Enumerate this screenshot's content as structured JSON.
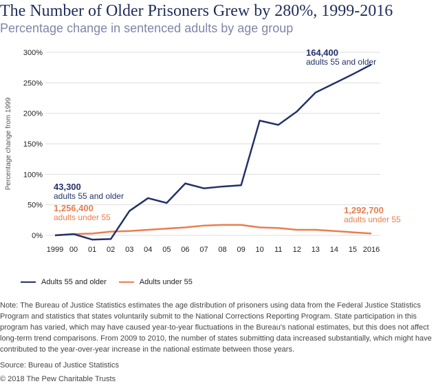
{
  "chart_data": {
    "type": "line",
    "title": "The Number of Older Prisoners Grew by 280%, 1999-2016",
    "subtitle": "Percentage change in sentenced adults by age group",
    "ylabel": "Percentage change from 1999",
    "xlabel": "",
    "ylim": [
      0,
      300
    ],
    "yticks": [
      "0%",
      "50%",
      "100%",
      "150%",
      "200%",
      "250%",
      "300%"
    ],
    "categories": [
      "1999",
      "00",
      "01",
      "02",
      "03",
      "04",
      "05",
      "06",
      "07",
      "08",
      "09",
      "10",
      "11",
      "12",
      "13",
      "14",
      "15",
      "2016"
    ],
    "grid": true,
    "legend_position": "bottom-left",
    "series": [
      {
        "name": "Adults 55 and older",
        "color": "#23306a",
        "values": [
          0,
          2,
          -7,
          -6,
          40,
          61,
          53,
          85,
          77,
          80,
          82,
          188,
          181,
          203,
          234,
          249,
          264,
          280
        ]
      },
      {
        "name": "Adults under 55",
        "color": "#ea7d4e",
        "values": [
          0,
          2,
          3,
          6,
          7,
          9,
          11,
          13,
          16,
          17,
          17,
          13,
          12,
          9,
          9,
          7,
          5,
          3
        ]
      }
    ],
    "annotations": [
      {
        "value": "43,300",
        "text": "adults 55 and older",
        "color": "#23306a"
      },
      {
        "value": "1,256,400",
        "text": "adults under 55",
        "color": "#ea7d4e"
      },
      {
        "value": "164,400",
        "text": "adults 55 and older",
        "color": "#23306a"
      },
      {
        "value": "1,292,700",
        "text": "adults under 55",
        "color": "#ea7d4e"
      }
    ]
  },
  "note": "Note: The Bureau of Justice Statistics estimates the age distribution of prisoners using data from the Federal Justice Statistics Program and statistics that states voluntarily submit to the National Corrections Reporting Program. State participation in this program has varied, which may have caused year-to-year fluctuations in the Bureau's national estimates, but this does not affect long-term trend comparisons. From 2009 to 2010, the number of states submitting data increased substantially, which might have contributed to the year-over-year increase in the national estimate between those years.",
  "source": "Source: Bureau of Justice Statistics",
  "copyright": "© 2018 The Pew Charitable Trusts"
}
